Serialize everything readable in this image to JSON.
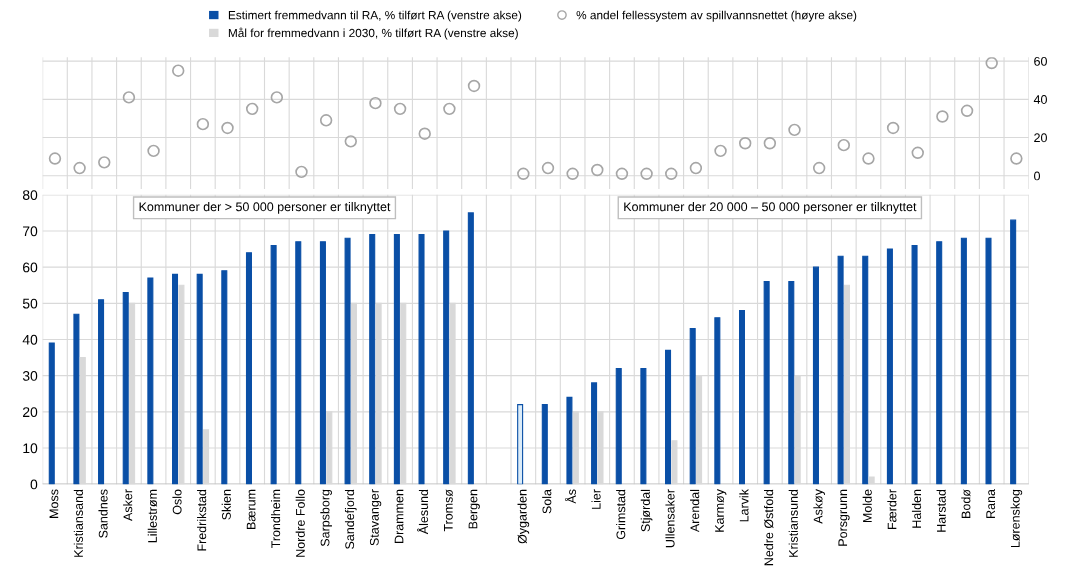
{
  "chart_data": [
    {
      "type": "scatter",
      "categories": [
        null,
        null,
        null,
        null,
        null,
        null,
        null,
        null,
        null,
        null,
        null,
        null,
        null,
        null,
        null,
        null,
        null,
        null,
        null,
        null,
        null,
        null,
        null,
        null,
        null,
        null,
        null,
        null,
        null,
        null,
        null,
        null,
        null,
        null,
        null,
        null,
        null,
        null,
        null,
        null
      ],
      "series": [
        {
          "name": "% andel fellessystem av spillvannsnettet (høyre akse)",
          "color": "#a6a6a6",
          "axis": "y2",
          "marker": "circle",
          "values": [
            9,
            4,
            7,
            41,
            13,
            55,
            27,
            25,
            35,
            41,
            2,
            29,
            18,
            38,
            35,
            22,
            35,
            47,
            null,
            1,
            4,
            1,
            3,
            1,
            1,
            1,
            4,
            13,
            17,
            17,
            24,
            4,
            16,
            9,
            25,
            12,
            31,
            34,
            59,
            9
          ]
        }
      ],
      "y2lim": [
        -7,
        62
      ],
      "y2ticks": [
        0,
        20,
        40,
        60
      ],
      "grid": true,
      "legend": "top"
    },
    {
      "type": "bar",
      "categories": [
        "Moss",
        "Kristiansand",
        "Sandnes",
        "Asker",
        "Lillestrøm",
        "Oslo",
        "Fredrikstad",
        "Skien",
        "Bærum",
        "Trondheim",
        "Nordre Follo",
        "Sarpsborg",
        "Sandefjord",
        "Stavanger",
        "Drammen",
        "Ålesund",
        "Tromsø",
        "Bergen",
        null,
        "Øygarden",
        "Sola",
        "Ås",
        "Lier",
        "Grimstad",
        "Stjørdal",
        "Ullensaker",
        "Arendal",
        "Karmøy",
        "Larvik",
        "Nedre Østfold",
        "Kristiansund",
        "Askøy",
        "Porsgrunn",
        "Molde",
        "Færder",
        "Halden",
        "Harstad",
        "Bodø",
        "Rana",
        "Lørenskog"
      ],
      "series": [
        {
          "name": "Estimert fremmedvann til RA, % tilført RA (venstre akse)",
          "color": "#0a4fa6",
          "colors": [
            "#0a4fa6",
            "#0a4fa6",
            "#0a4fa6",
            "#0a4fa6",
            "#0a4fa6",
            "#0a4fa6",
            "#0a4fa6",
            "#0a4fa6",
            "#0a4fa6",
            "#0a4fa6",
            "#0a4fa6",
            "#0a4fa6",
            "#0a4fa6",
            "#0a4fa6",
            "#0a4fa6",
            "#0a4fa6",
            "#0a4fa6",
            "#0a4fa6",
            "#0a4fa6",
            "#dcecf8",
            "#0a4fa6",
            "#0a4fa6",
            "#0a4fa6",
            "#0a4fa6",
            "#0a4fa6",
            "#0a4fa6",
            "#0a4fa6",
            "#0a4fa6",
            "#0a4fa6",
            "#0a4fa6",
            "#0a4fa6",
            "#0a4fa6",
            "#0a4fa6",
            "#0a4fa6",
            "#0a4fa6",
            "#0a4fa6",
            "#0a4fa6",
            "#0a4fa6",
            "#0a4fa6",
            "#0a4fa6"
          ],
          "values": [
            39,
            47,
            51,
            53,
            57,
            58,
            58,
            59,
            64,
            66,
            67,
            67,
            68,
            69,
            69,
            69,
            70,
            75,
            null,
            22,
            22,
            24,
            28,
            32,
            32,
            37,
            43,
            46,
            48,
            56,
            56,
            60,
            63,
            63,
            65,
            66,
            67,
            68,
            68,
            73
          ]
        },
        {
          "name": "Mål for fremmedvann i 2030, % tilført RA (venstre akse)",
          "color": "#d9d9d9",
          "values": [
            null,
            35,
            null,
            50,
            null,
            55,
            15,
            null,
            null,
            null,
            null,
            20,
            50,
            50,
            50,
            null,
            50,
            null,
            null,
            null,
            null,
            20,
            20,
            null,
            null,
            12,
            30,
            null,
            null,
            null,
            30,
            null,
            55,
            2,
            null,
            null,
            null,
            null,
            null,
            null
          ]
        }
      ],
      "annotations": [
        "Kommuner der > 50 000 personer er tilknyttet",
        "Kommuner der 20 000 – 50 000 personer er tilknyttet"
      ],
      "ylim": [
        0,
        80
      ],
      "yticks": [
        0,
        10,
        20,
        30,
        40,
        50,
        60,
        70,
        80
      ],
      "grid": true,
      "legend": "top"
    }
  ]
}
